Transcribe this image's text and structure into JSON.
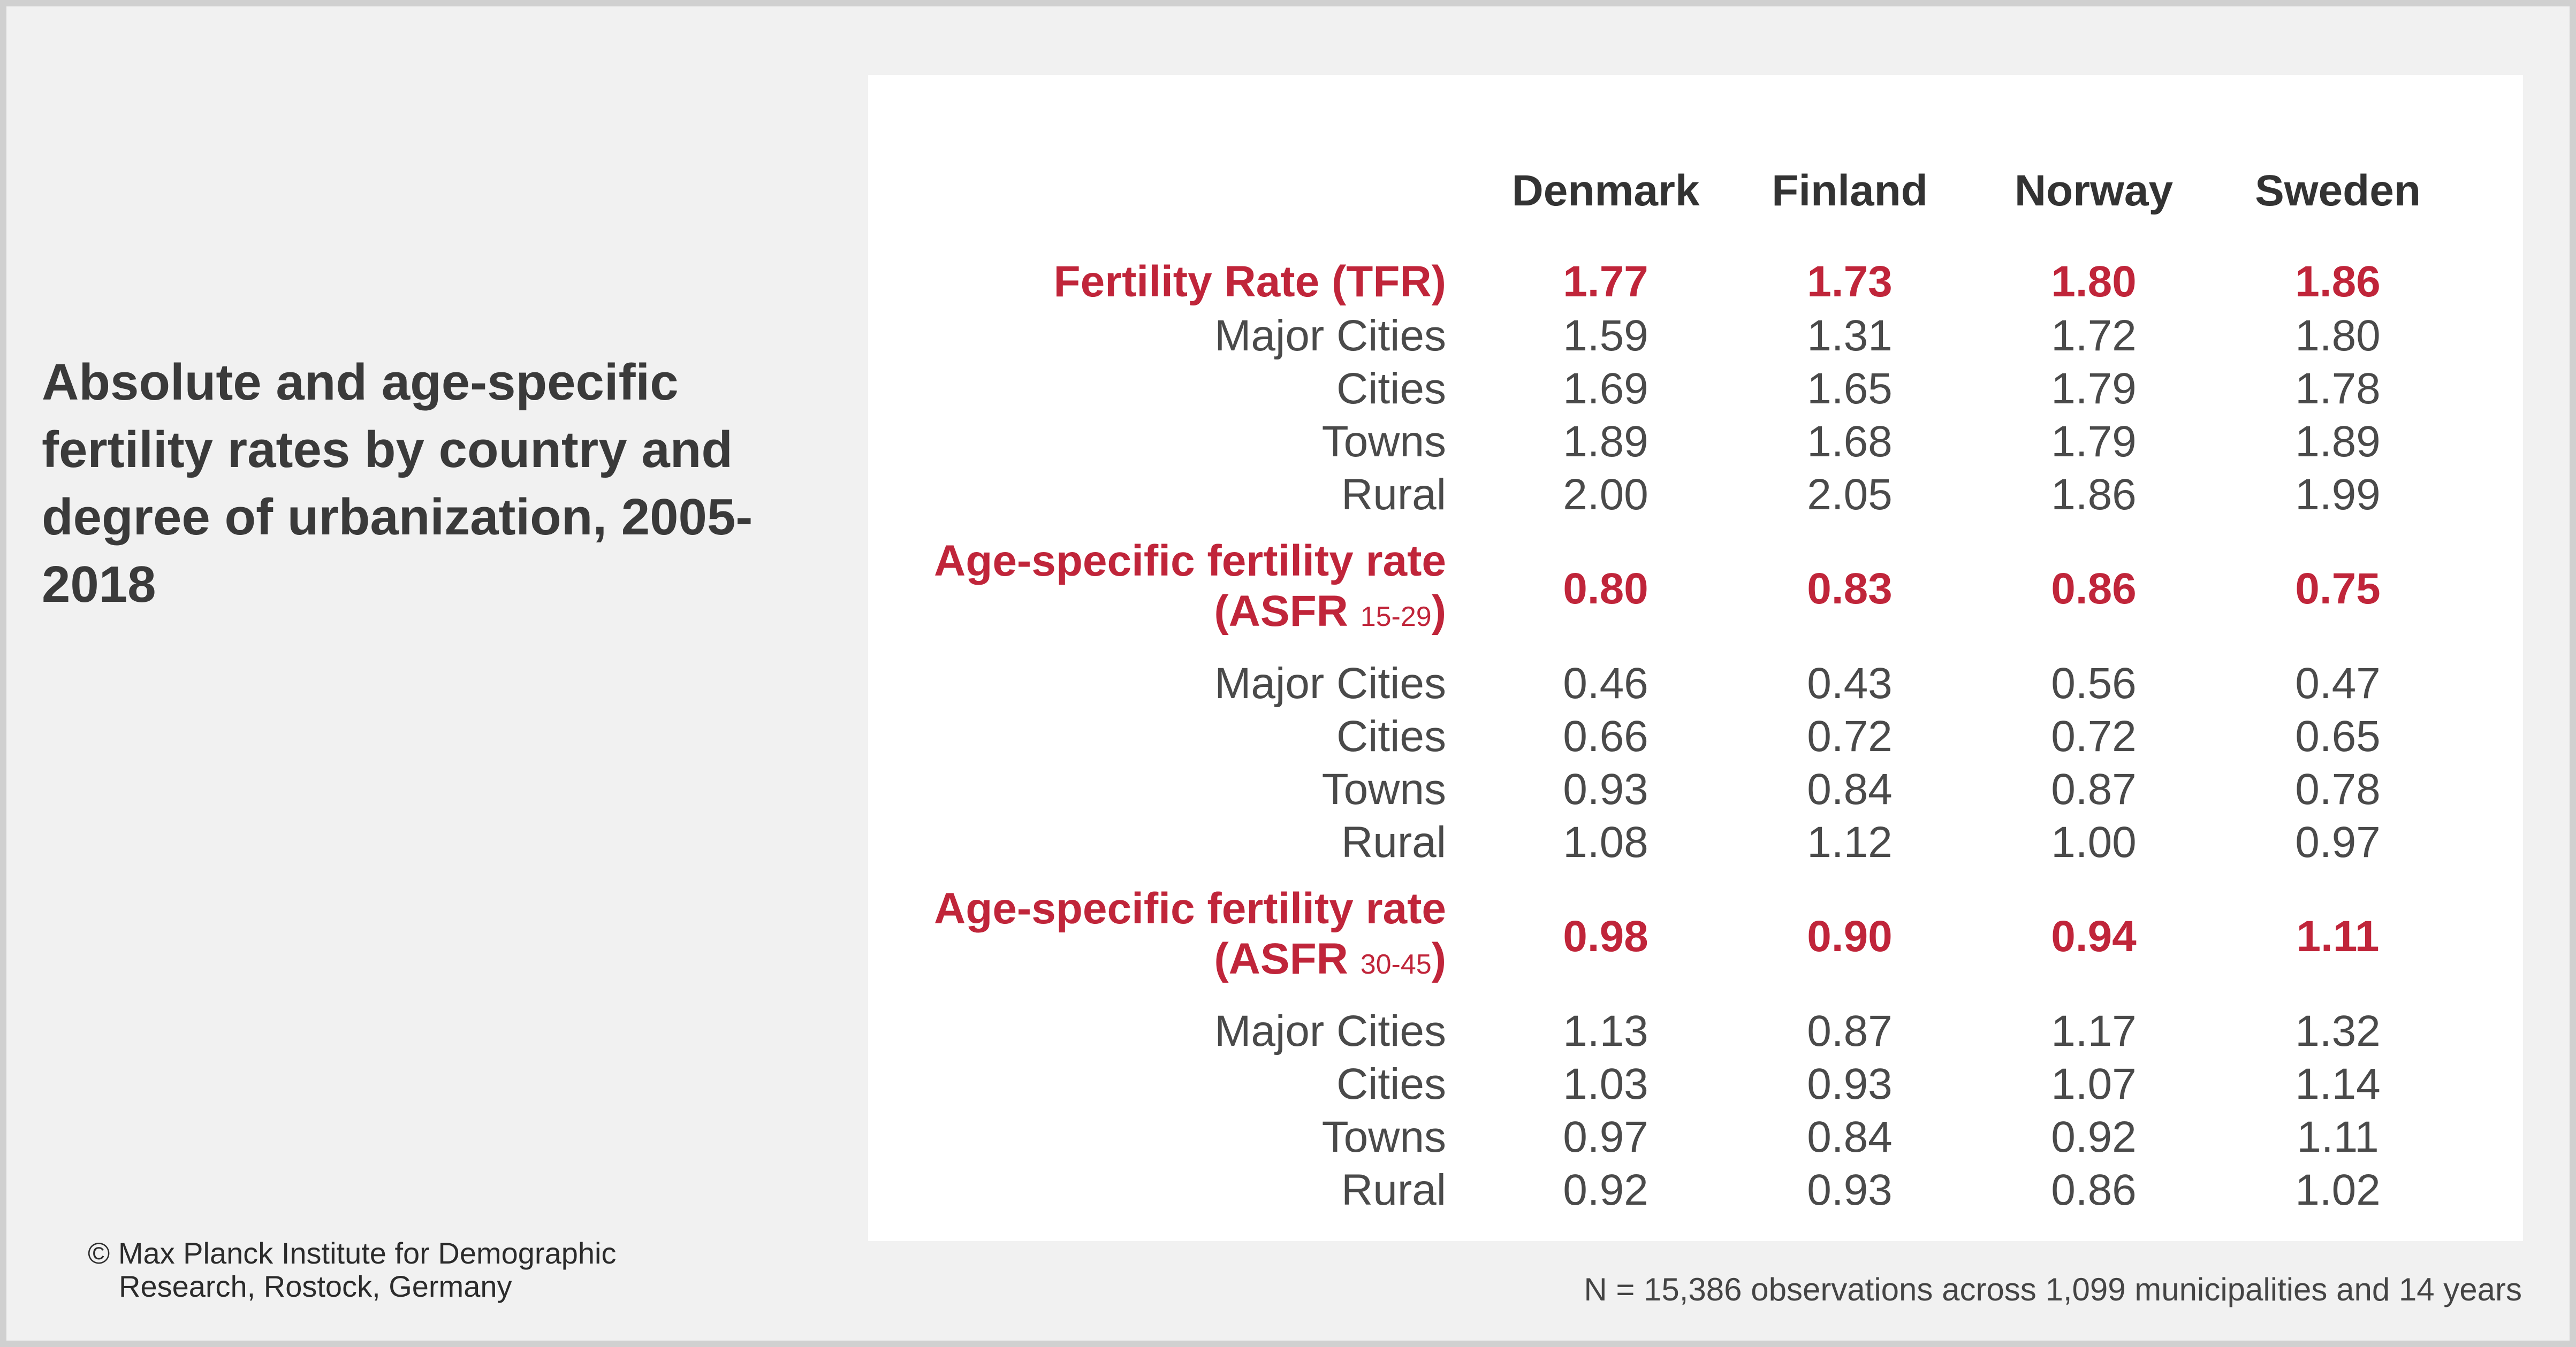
{
  "title": "Absolute and age-specific fertility rates by country and degree of urbanization, 2005-2018",
  "copyright_line1": "© Max Planck Institute for Demographic",
  "copyright_line2": "Research, Rostock, Germany",
  "note": "N = 15,386 observations across 1,099 municipalities and 14 years",
  "colors": {
    "highlight": "#c0253a",
    "text": "#4a4a4a"
  },
  "chart_data": {
    "type": "table",
    "columns": [
      "Denmark",
      "Finland",
      "Norway",
      "Sweden"
    ],
    "groups": [
      {
        "label": "Fertility Rate (TFR)",
        "values": [
          "1.77",
          "1.73",
          "1.80",
          "1.86"
        ],
        "rows": [
          {
            "label": "Major Cities",
            "values": [
              "1.59",
              "1.31",
              "1.72",
              "1.80"
            ]
          },
          {
            "label": "Cities",
            "values": [
              "1.69",
              "1.65",
              "1.79",
              "1.78"
            ]
          },
          {
            "label": "Towns",
            "values": [
              "1.89",
              "1.68",
              "1.79",
              "1.89"
            ]
          },
          {
            "label": "Rural",
            "values": [
              "2.00",
              "2.05",
              "1.86",
              "1.99"
            ]
          }
        ]
      },
      {
        "label_line1": "Age-specific fertility rate",
        "label_line2": "(ASFR",
        "label_sub": "15-29",
        "label_close": ")",
        "values": [
          "0.80",
          "0.83",
          "0.86",
          "0.75"
        ],
        "rows": [
          {
            "label": "Major Cities",
            "values": [
              "0.46",
              "0.43",
              "0.56",
              "0.47"
            ]
          },
          {
            "label": "Cities",
            "values": [
              "0.66",
              "0.72",
              "0.72",
              "0.65"
            ]
          },
          {
            "label": "Towns",
            "values": [
              "0.93",
              "0.84",
              "0.87",
              "0.78"
            ]
          },
          {
            "label": "Rural",
            "values": [
              "1.08",
              "1.12",
              "1.00",
              "0.97"
            ]
          }
        ]
      },
      {
        "label_line1": "Age-specific fertility rate",
        "label_line2": "(ASFR",
        "label_sub": "30-45",
        "label_close": ")",
        "values": [
          "0.98",
          "0.90",
          "0.94",
          "1.11"
        ],
        "rows": [
          {
            "label": "Major Cities",
            "values": [
              "1.13",
              "0.87",
              "1.17",
              "1.32"
            ]
          },
          {
            "label": "Cities",
            "values": [
              "1.03",
              "0.93",
              "1.07",
              "1.14"
            ]
          },
          {
            "label": "Towns",
            "values": [
              "0.97",
              "0.84",
              "0.92",
              "1.11"
            ]
          },
          {
            "label": "Rural",
            "values": [
              "0.92",
              "0.93",
              "0.86",
              "1.02"
            ]
          }
        ]
      }
    ]
  }
}
